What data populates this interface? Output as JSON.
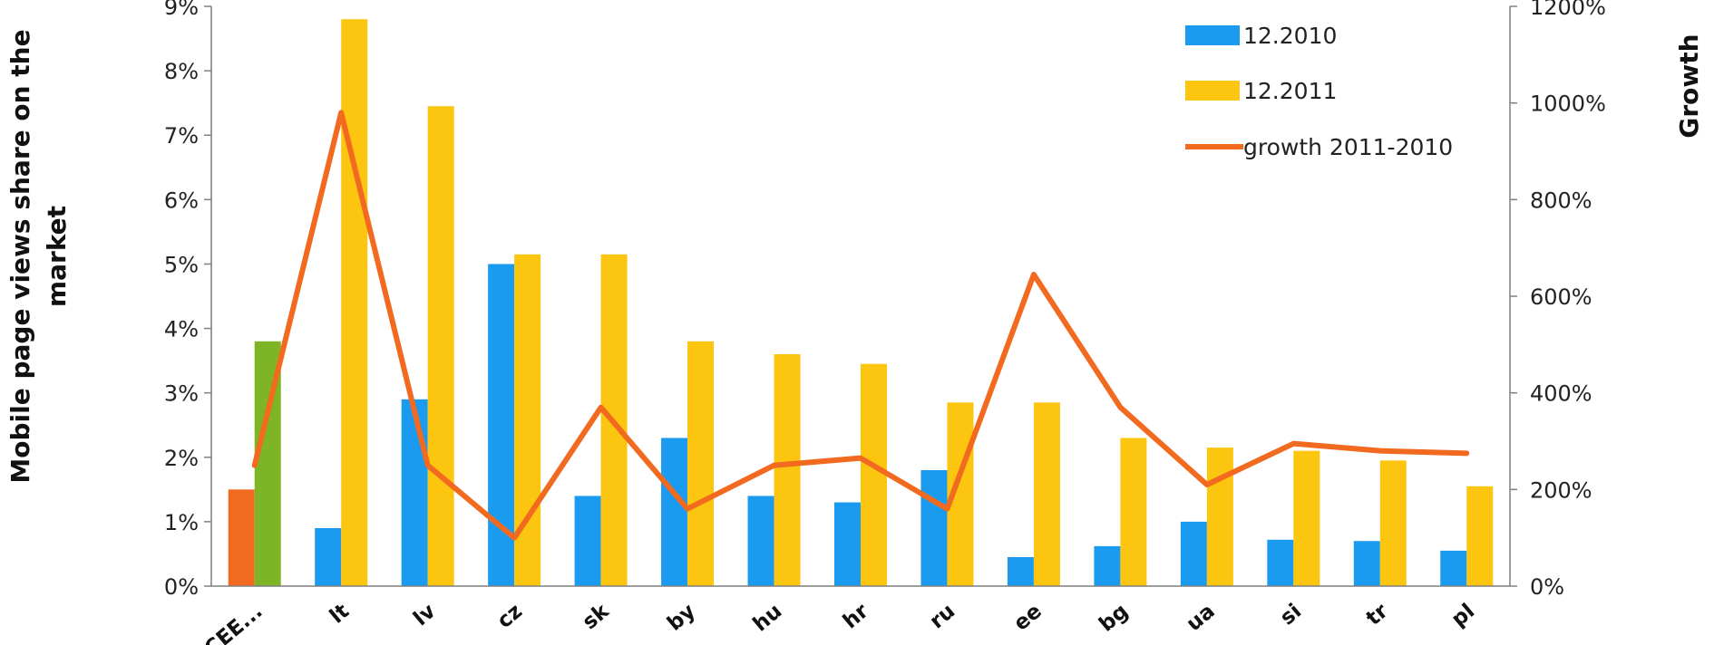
{
  "chart_data": {
    "type": "bar",
    "categories": [
      "CEE...",
      "lt",
      "lv",
      "cz",
      "sk",
      "by",
      "hu",
      "hr",
      "ru",
      "ee",
      "bg",
      "ua",
      "si",
      "tr",
      "pl"
    ],
    "series": [
      {
        "name": "12.2010",
        "axis": "left",
        "type": "bar",
        "color": "#1a9bf0",
        "values": [
          1.5,
          0.9,
          2.9,
          5.0,
          1.4,
          2.3,
          1.4,
          1.3,
          1.8,
          0.45,
          0.62,
          1.0,
          0.72,
          0.7,
          0.55
        ]
      },
      {
        "name": "12.2011",
        "axis": "left",
        "type": "bar",
        "color": "#fcc510",
        "values": [
          3.8,
          8.8,
          7.45,
          5.15,
          5.15,
          3.8,
          3.6,
          3.45,
          2.85,
          2.85,
          2.3,
          2.15,
          2.1,
          1.95,
          1.55
        ]
      },
      {
        "name": "growth 2011-2010",
        "axis": "right",
        "type": "line",
        "color": "#f26a1f",
        "values": [
          250,
          980,
          250,
          100,
          370,
          160,
          250,
          265,
          160,
          645,
          370,
          210,
          295,
          280,
          275
        ]
      }
    ],
    "highlight_first_category_colors": {
      "12.2010": "#f26a1f",
      "12.2011": "#7db526"
    },
    "ylabel": "Mobile page views share on the market",
    "ylabel_lines": [
      "Mobile page views share on the",
      "market"
    ],
    "y2label": "Growth",
    "ylim": [
      0,
      9
    ],
    "y_ticks": [
      "0%",
      "1%",
      "2%",
      "3%",
      "4%",
      "5%",
      "6%",
      "7%",
      "8%",
      "9%"
    ],
    "y2lim": [
      0,
      1200
    ],
    "y2_ticks": [
      "0%",
      "200%",
      "400%",
      "600%",
      "800%",
      "1000%",
      "1200%"
    ],
    "legend_position": "top-right",
    "grid": false
  }
}
